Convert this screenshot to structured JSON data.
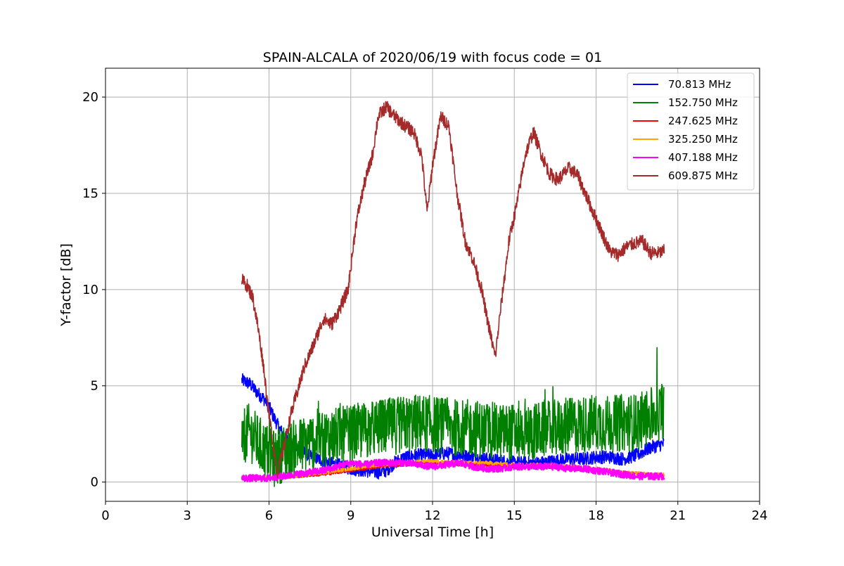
{
  "chart_data": {
    "type": "line",
    "title": "SPAIN-ALCALA of 2020/06/19 with focus code = 01",
    "xlabel": "Universal Time [h]",
    "ylabel": "Y-factor [dB]",
    "xlim": [
      0,
      24
    ],
    "ylim": [
      -1,
      21.5
    ],
    "xticks": [
      0,
      3,
      6,
      9,
      12,
      15,
      18,
      21,
      24
    ],
    "yticks": [
      0,
      5,
      10,
      15,
      20
    ],
    "xtick_labels": [
      "0",
      "3",
      "6",
      "9",
      "12",
      "15",
      "18",
      "21",
      "24"
    ],
    "ytick_labels": [
      "0",
      "5",
      "10",
      "15",
      "20"
    ],
    "grid": true,
    "legend_position": "top-right",
    "series": [
      {
        "name": " 70.813 MHz",
        "color": "#0000ff",
        "noise": 0.35,
        "points": [
          [
            5.0,
            5.3
          ],
          [
            5.3,
            5.1
          ],
          [
            5.6,
            4.6
          ],
          [
            5.9,
            4.2
          ],
          [
            6.1,
            3.6
          ],
          [
            6.3,
            3.0
          ],
          [
            6.5,
            2.5
          ],
          [
            6.8,
            2.0
          ],
          [
            7.2,
            1.6
          ],
          [
            7.6,
            1.3
          ],
          [
            8.0,
            1.1
          ],
          [
            8.5,
            0.9
          ],
          [
            9.0,
            0.7
          ],
          [
            9.5,
            0.6
          ],
          [
            10.0,
            0.5
          ],
          [
            10.3,
            0.6
          ],
          [
            10.6,
            1.0
          ],
          [
            11.0,
            1.3
          ],
          [
            11.5,
            1.4
          ],
          [
            12.0,
            1.4
          ],
          [
            12.5,
            1.5
          ],
          [
            13.0,
            1.4
          ],
          [
            13.5,
            1.3
          ],
          [
            14.0,
            1.2
          ],
          [
            14.5,
            1.1
          ],
          [
            15.0,
            1.0
          ],
          [
            15.5,
            1.0
          ],
          [
            16.0,
            1.0
          ],
          [
            16.5,
            1.1
          ],
          [
            17.0,
            1.2
          ],
          [
            17.5,
            1.2
          ],
          [
            18.0,
            1.3
          ],
          [
            18.5,
            1.3
          ],
          [
            19.0,
            1.2
          ],
          [
            19.5,
            1.4
          ],
          [
            20.0,
            1.8
          ],
          [
            20.5,
            2.0
          ]
        ]
      },
      {
        "name": "152.750 MHz",
        "color": "#008000",
        "noise": 1.5,
        "points": [
          [
            5.0,
            2.4
          ],
          [
            5.3,
            2.6
          ],
          [
            5.6,
            2.0
          ],
          [
            5.9,
            1.6
          ],
          [
            6.2,
            1.2
          ],
          [
            6.5,
            1.5
          ],
          [
            7.0,
            1.8
          ],
          [
            7.5,
            2.1
          ],
          [
            8.0,
            2.3
          ],
          [
            8.5,
            2.4
          ],
          [
            9.0,
            2.5
          ],
          [
            9.5,
            2.7
          ],
          [
            10.0,
            2.8
          ],
          [
            10.5,
            2.9
          ],
          [
            11.0,
            3.0
          ],
          [
            11.5,
            3.1
          ],
          [
            12.0,
            3.0
          ],
          [
            12.5,
            2.9
          ],
          [
            13.0,
            2.8
          ],
          [
            13.5,
            2.8
          ],
          [
            14.0,
            2.7
          ],
          [
            14.5,
            2.6
          ],
          [
            15.0,
            2.6
          ],
          [
            15.5,
            2.6
          ],
          [
            16.0,
            2.7
          ],
          [
            16.5,
            2.8
          ],
          [
            17.0,
            2.9
          ],
          [
            17.5,
            3.0
          ],
          [
            18.0,
            3.1
          ],
          [
            18.5,
            3.0
          ],
          [
            19.0,
            3.1
          ],
          [
            19.5,
            3.1
          ],
          [
            20.0,
            3.4
          ],
          [
            20.5,
            3.8
          ]
        ]
      },
      {
        "name": "247.625 MHz",
        "color": "#ff0000",
        "noise": 0.08,
        "points": [
          [
            5.0,
            0.2
          ],
          [
            6.0,
            0.2
          ],
          [
            7.0,
            0.3
          ],
          [
            8.0,
            0.4
          ],
          [
            9.0,
            0.6
          ],
          [
            10.0,
            0.8
          ],
          [
            11.0,
            0.9
          ],
          [
            12.0,
            1.0
          ],
          [
            13.0,
            0.9
          ],
          [
            14.0,
            0.9
          ],
          [
            15.0,
            0.8
          ],
          [
            16.0,
            0.8
          ],
          [
            17.0,
            0.7
          ],
          [
            18.0,
            0.6
          ],
          [
            19.0,
            0.5
          ],
          [
            20.0,
            0.4
          ],
          [
            20.5,
            0.3
          ]
        ]
      },
      {
        "name": "325.250 MHz",
        "color": "#ffa500",
        "noise": 0.1,
        "points": [
          [
            5.0,
            0.2
          ],
          [
            6.0,
            0.2
          ],
          [
            7.0,
            0.3
          ],
          [
            8.0,
            0.5
          ],
          [
            9.0,
            0.7
          ],
          [
            10.0,
            0.9
          ],
          [
            11.0,
            1.0
          ],
          [
            12.0,
            1.1
          ],
          [
            13.0,
            1.0
          ],
          [
            14.0,
            1.0
          ],
          [
            15.0,
            0.9
          ],
          [
            16.0,
            0.9
          ],
          [
            17.0,
            0.8
          ],
          [
            18.0,
            0.7
          ],
          [
            19.0,
            0.5
          ],
          [
            20.0,
            0.4
          ],
          [
            20.5,
            0.4
          ]
        ]
      },
      {
        "name": "407.188 MHz",
        "color": "#ff00ff",
        "noise": 0.18,
        "points": [
          [
            5.0,
            0.2
          ],
          [
            5.5,
            0.2
          ],
          [
            6.0,
            0.2
          ],
          [
            6.5,
            0.3
          ],
          [
            7.0,
            0.4
          ],
          [
            7.5,
            0.5
          ],
          [
            8.0,
            0.6
          ],
          [
            8.5,
            0.8
          ],
          [
            9.0,
            1.0
          ],
          [
            9.5,
            0.9
          ],
          [
            10.0,
            1.0
          ],
          [
            10.5,
            1.0
          ],
          [
            11.0,
            1.0
          ],
          [
            11.5,
            0.9
          ],
          [
            12.0,
            0.8
          ],
          [
            12.5,
            0.9
          ],
          [
            13.0,
            1.0
          ],
          [
            13.5,
            0.8
          ],
          [
            14.0,
            0.7
          ],
          [
            14.5,
            0.7
          ],
          [
            15.0,
            0.8
          ],
          [
            15.5,
            0.8
          ],
          [
            16.0,
            0.8
          ],
          [
            16.5,
            0.8
          ],
          [
            17.0,
            0.7
          ],
          [
            17.5,
            0.7
          ],
          [
            18.0,
            0.6
          ],
          [
            18.5,
            0.5
          ],
          [
            19.0,
            0.4
          ],
          [
            19.5,
            0.3
          ],
          [
            20.0,
            0.3
          ],
          [
            20.5,
            0.3
          ]
        ]
      },
      {
        "name": "609.875 MHz",
        "color": "#a52a2a",
        "noise": 0.35,
        "points": [
          [
            5.0,
            10.5
          ],
          [
            5.2,
            10.2
          ],
          [
            5.4,
            9.6
          ],
          [
            5.6,
            8.0
          ],
          [
            5.8,
            6.0
          ],
          [
            6.0,
            3.5
          ],
          [
            6.2,
            1.5
          ],
          [
            6.3,
            0.5
          ],
          [
            6.5,
            1.5
          ],
          [
            6.8,
            3.5
          ],
          [
            7.0,
            4.5
          ],
          [
            7.3,
            6.0
          ],
          [
            7.6,
            7.0
          ],
          [
            8.0,
            8.5
          ],
          [
            8.3,
            8.2
          ],
          [
            8.6,
            9.0
          ],
          [
            8.9,
            10.0
          ],
          [
            9.2,
            13.5
          ],
          [
            9.5,
            15.5
          ],
          [
            9.8,
            17.0
          ],
          [
            10.0,
            19.0
          ],
          [
            10.3,
            19.5
          ],
          [
            10.6,
            19.0
          ],
          [
            11.0,
            18.5
          ],
          [
            11.3,
            18.2
          ],
          [
            11.6,
            17.0
          ],
          [
            11.8,
            14.0
          ],
          [
            12.0,
            16.5
          ],
          [
            12.3,
            19.0
          ],
          [
            12.6,
            18.5
          ],
          [
            12.9,
            15.0
          ],
          [
            13.2,
            12.5
          ],
          [
            13.5,
            11.5
          ],
          [
            13.8,
            10.0
          ],
          [
            14.0,
            8.5
          ],
          [
            14.3,
            6.5
          ],
          [
            14.5,
            9.0
          ],
          [
            14.8,
            12.5
          ],
          [
            15.1,
            14.5
          ],
          [
            15.4,
            17.0
          ],
          [
            15.7,
            18.2
          ],
          [
            16.0,
            17.0
          ],
          [
            16.3,
            16.0
          ],
          [
            16.6,
            15.7
          ],
          [
            17.0,
            16.3
          ],
          [
            17.3,
            16.0
          ],
          [
            17.6,
            15.0
          ],
          [
            17.9,
            14.0
          ],
          [
            18.2,
            13.0
          ],
          [
            18.5,
            12.0
          ],
          [
            18.8,
            11.8
          ],
          [
            19.1,
            12.2
          ],
          [
            19.4,
            12.4
          ],
          [
            19.7,
            12.5
          ],
          [
            20.0,
            11.9
          ],
          [
            20.3,
            11.9
          ],
          [
            20.5,
            12.0
          ]
        ]
      }
    ]
  }
}
